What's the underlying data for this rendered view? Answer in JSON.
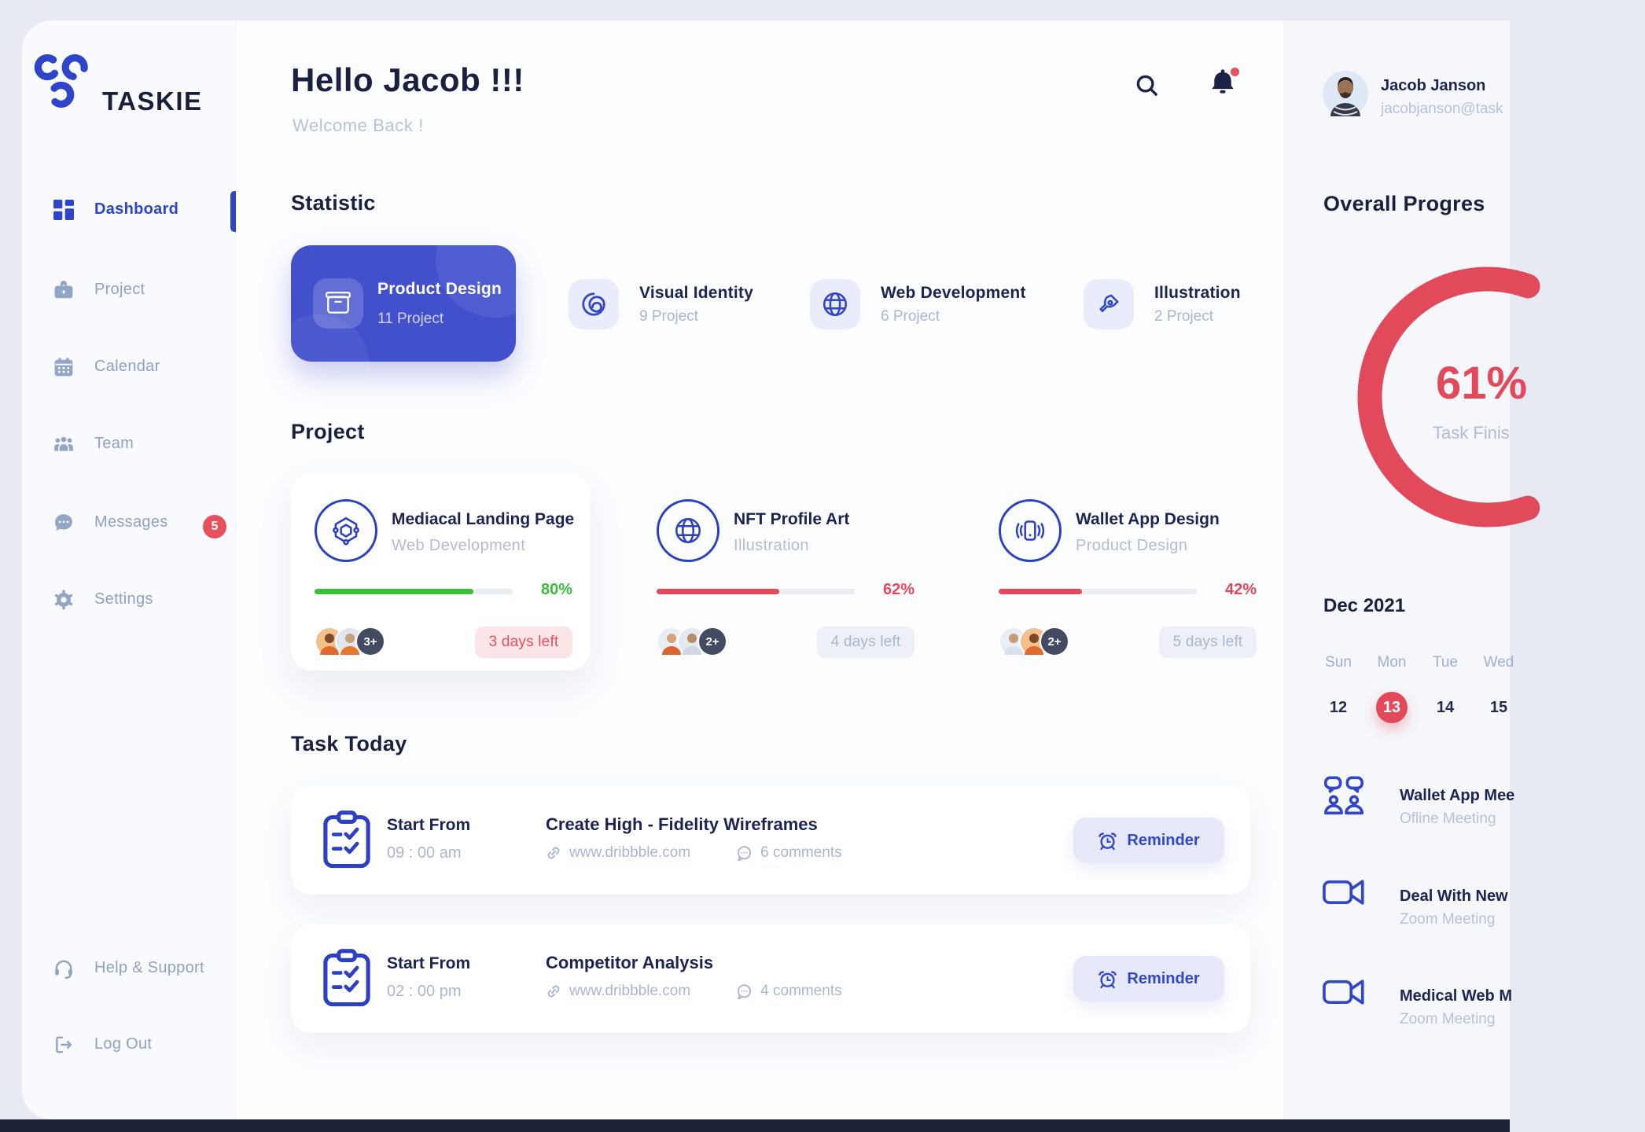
{
  "brand": {
    "name": "TASKIE"
  },
  "colors": {
    "accent": "#3246c8",
    "primary_card": "#4250cc",
    "red": "#e2495a",
    "green": "#3bbf3b",
    "dark": "#1a2140"
  },
  "sidebar": {
    "items": [
      {
        "label": "Dashboard",
        "icon": "grid-icon",
        "active": true
      },
      {
        "label": "Project",
        "icon": "briefcase-icon"
      },
      {
        "label": "Calendar",
        "icon": "calendar-icon"
      },
      {
        "label": "Team",
        "icon": "team-icon"
      },
      {
        "label": "Messages",
        "icon": "chat-icon",
        "badge": "5"
      },
      {
        "label": "Settings",
        "icon": "gear-icon"
      }
    ],
    "footer": [
      {
        "label": "Help & Support",
        "icon": "headset-icon"
      },
      {
        "label": "Log Out",
        "icon": "logout-icon"
      }
    ]
  },
  "header": {
    "greeting": "Hello Jacob !!!",
    "subtitle": "Welcome Back !"
  },
  "statistic": {
    "title": "Statistic",
    "cards": [
      {
        "title": "Product Design",
        "count": "11 Project",
        "icon": "package-icon",
        "highlighted": true
      },
      {
        "title": "Visual Identity",
        "count": "9 Project",
        "icon": "swirl-icon"
      },
      {
        "title": "Web Development",
        "count": "6 Project",
        "icon": "globe-icon"
      },
      {
        "title": "Illustration",
        "count": "2 Project",
        "icon": "pen-icon"
      }
    ]
  },
  "projects": {
    "title": "Project",
    "cards": [
      {
        "title": "Mediacal Landing Page",
        "category": "Web Development",
        "icon": "hexagon-network-icon",
        "percent": "80%",
        "bar_color": "#3bbf3b",
        "days_left": "3 days left",
        "badge_bg": "#fce5e7",
        "badge_color": "#e8505c",
        "extra": "3+"
      },
      {
        "title": "NFT Profile Art",
        "category": "Illustration",
        "icon": "globe-icon",
        "percent": "62%",
        "bar_color": "#e2495a",
        "days_left": "4 days left",
        "badge_bg": "#edf0f6",
        "badge_color": "#a9b6cc",
        "extra": "2+"
      },
      {
        "title": "Wallet App Design",
        "category": "Product Design",
        "icon": "phone-waves-icon",
        "percent": "42%",
        "bar_color": "#e2495a",
        "days_left": "5 days left",
        "badge_bg": "#edf0f6",
        "badge_color": "#a9b6cc",
        "extra": "2+"
      }
    ]
  },
  "tasks": {
    "title": "Task Today",
    "items": [
      {
        "start_label": "Start From",
        "time": "09 : 00 am",
        "title": "Create High - Fidelity Wireframes",
        "link": "www.dribbble.com",
        "comments": "6 comments",
        "reminder": "Reminder"
      },
      {
        "start_label": "Start From",
        "time": "02 : 00 pm",
        "title": "Competitor Analysis",
        "link": "www.dribbble.com",
        "comments": "4 comments",
        "reminder": "Reminder"
      }
    ]
  },
  "profile": {
    "name": "Jacob Janson",
    "email": "jacobjanson@task"
  },
  "overall": {
    "title": "Overall Progres",
    "percent": "61%",
    "percent_value": 61,
    "caption": "Task Finis"
  },
  "calendar": {
    "month": "Dec 2021",
    "days": [
      "Sun",
      "Mon",
      "Tue",
      "Wed"
    ],
    "dates": [
      "12",
      "13",
      "14",
      "15"
    ],
    "active_date": "13"
  },
  "meetings": [
    {
      "title": "Wallet App Mee",
      "subtitle": "Ofline Meeting",
      "icon": "people-chat-icon"
    },
    {
      "title": "Deal With New",
      "subtitle": "Zoom Meeting",
      "icon": "video-icon"
    },
    {
      "title": "Medical Web M",
      "subtitle": "Zoom Meeting",
      "icon": "video-icon"
    }
  ]
}
